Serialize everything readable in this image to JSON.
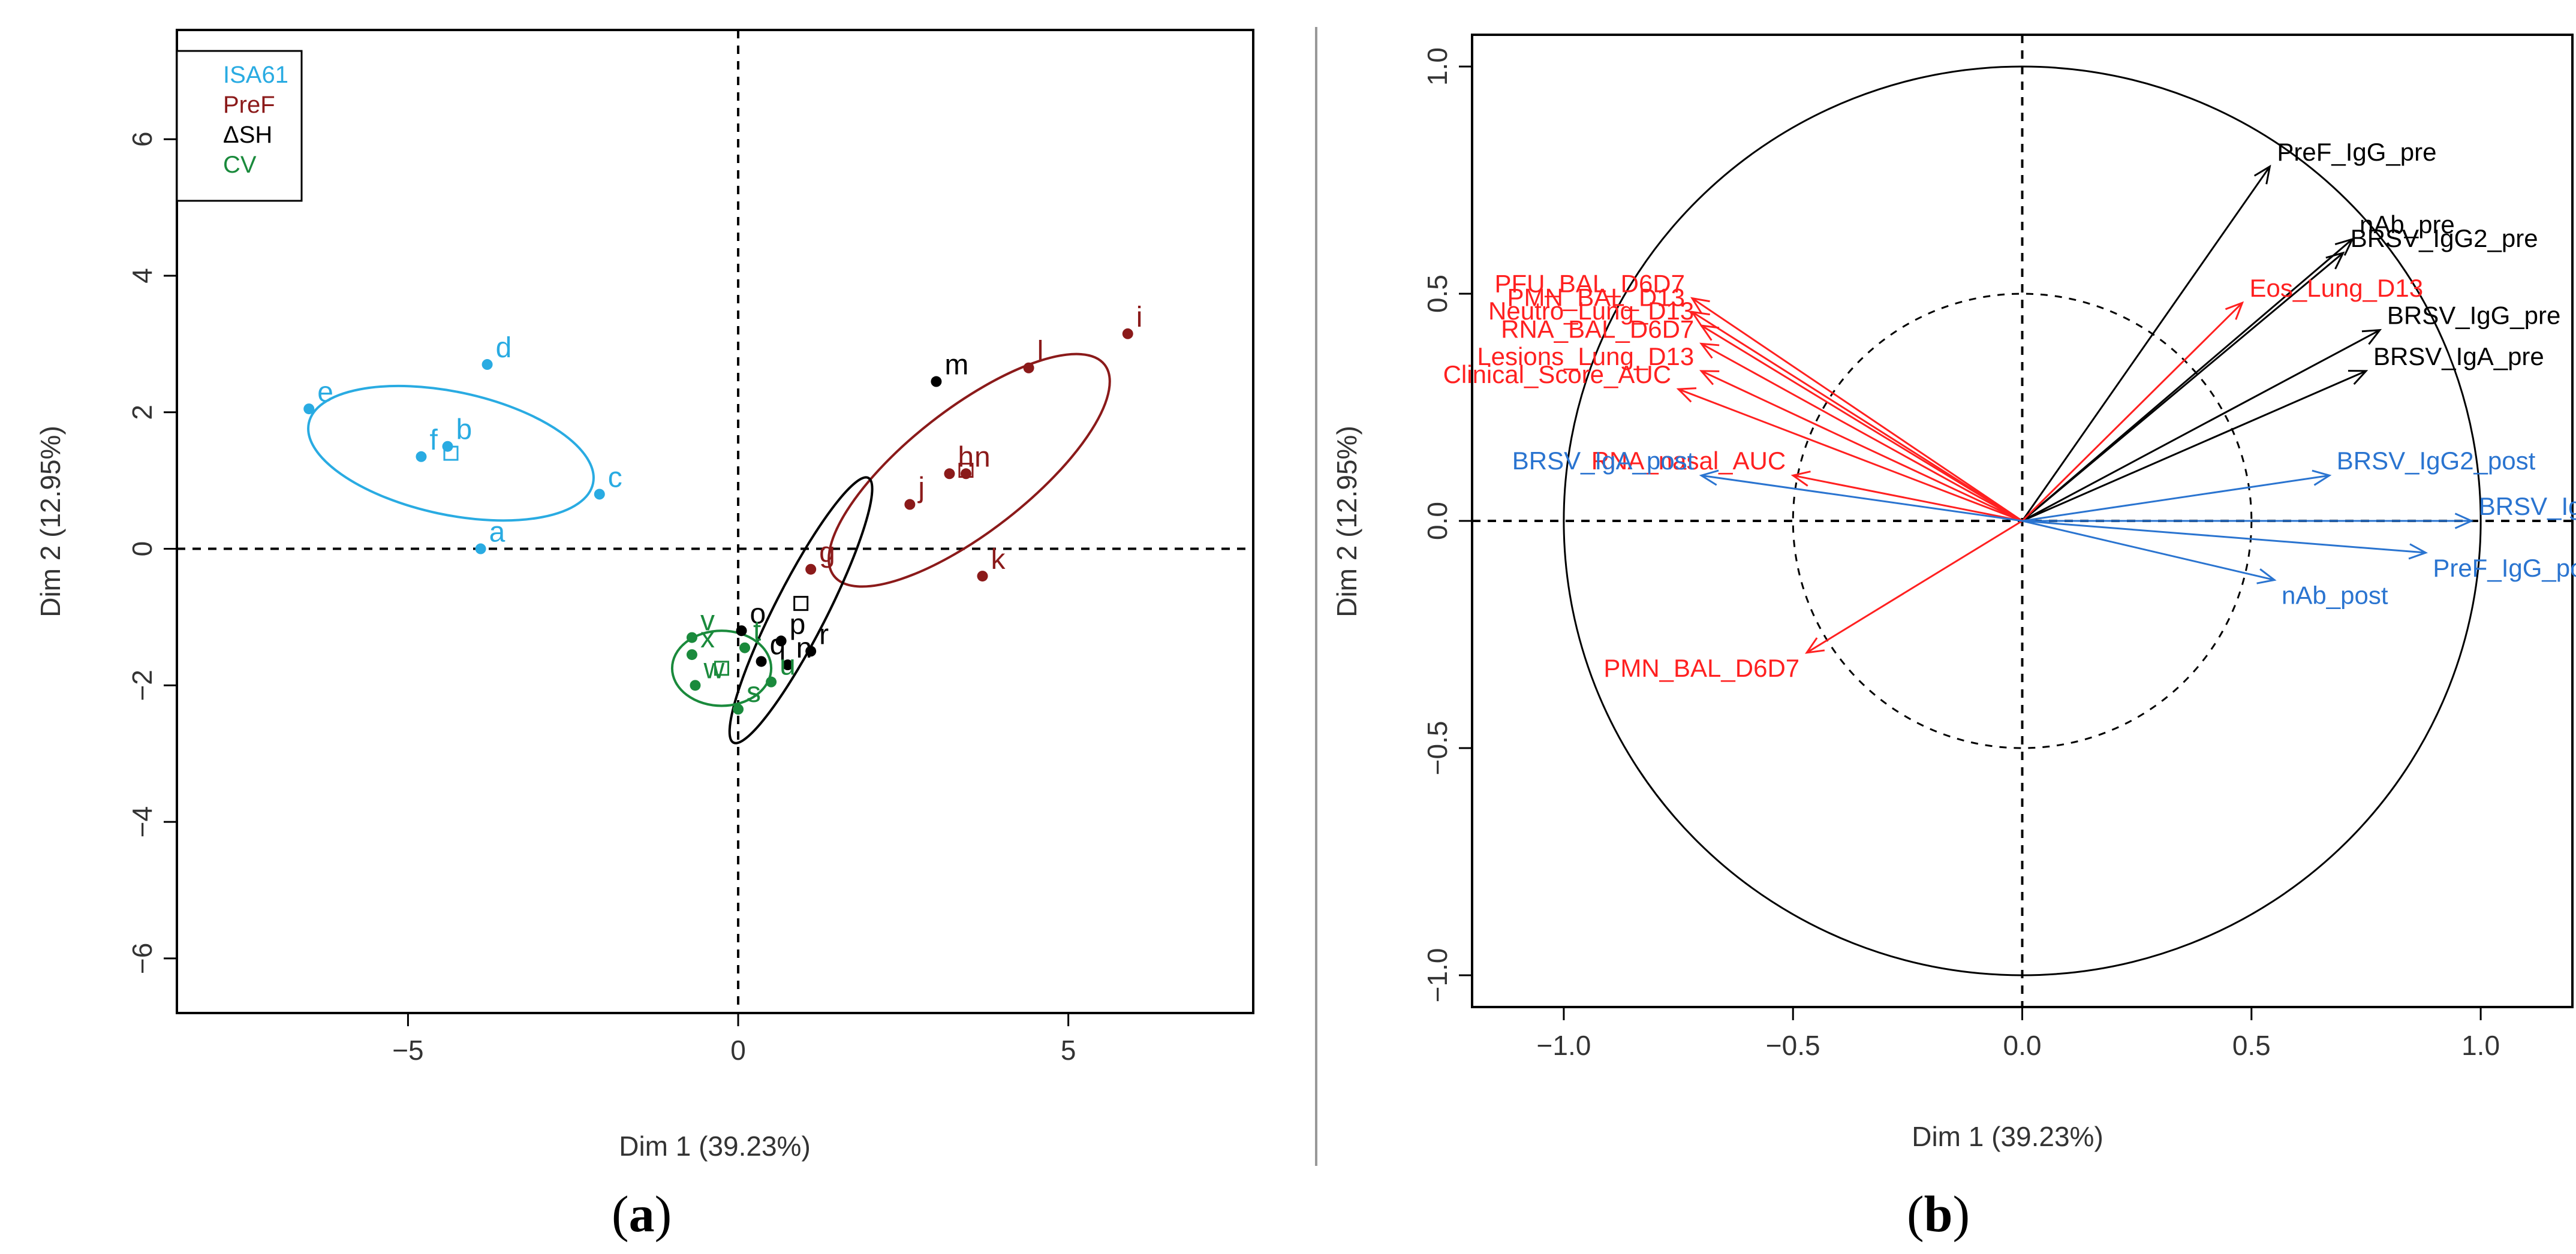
{
  "chart_data": [
    {
      "panel": "a",
      "type": "scatter",
      "xlabel": "Dim 1 (39.23%)",
      "ylabel": "Dim 2 (12.95%)",
      "xlim": [
        -8.5,
        7.8
      ],
      "ylim": [
        -6.8,
        7.6
      ],
      "xticks": [
        -5,
        0,
        5
      ],
      "yticks": [
        -6,
        -4,
        -2,
        0,
        2,
        4,
        6
      ],
      "legend": {
        "position": "top-left",
        "entries": [
          {
            "label": "ISA61",
            "color": "#29abe2"
          },
          {
            "label": "PreF",
            "color": "#8b1a1a"
          },
          {
            "label": "ΔSH",
            "color": "#000000"
          },
          {
            "label": "CV",
            "color": "#1a8a3c"
          }
        ]
      },
      "groups": [
        {
          "name": "ISA61",
          "color": "#29abe2",
          "points": [
            {
              "label": "a",
              "x": -3.9,
              "y": 0.0
            },
            {
              "label": "b",
              "x": -4.4,
              "y": 1.5
            },
            {
              "label": "c",
              "x": -2.1,
              "y": 0.8
            },
            {
              "label": "d",
              "x": -3.8,
              "y": 2.7
            },
            {
              "label": "e",
              "x": -6.5,
              "y": 2.05
            },
            {
              "label": "f",
              "x": -4.8,
              "y": 1.35
            }
          ],
          "centroid": {
            "x": -4.35,
            "y": 1.4
          },
          "ellipse": {
            "cx": -4.35,
            "cy": 1.4,
            "rx": 2.2,
            "ry": 0.9,
            "angle": -12
          }
        },
        {
          "name": "PreF",
          "color": "#8b1a1a",
          "points": [
            {
              "label": "g",
              "x": 1.1,
              "y": -0.3
            },
            {
              "label": "h",
              "x": 3.2,
              "y": 1.1
            },
            {
              "label": "i",
              "x": 5.9,
              "y": 3.15
            },
            {
              "label": "j",
              "x": 2.6,
              "y": 0.65
            },
            {
              "label": "k",
              "x": 3.7,
              "y": -0.4
            },
            {
              "label": "l",
              "x": 4.4,
              "y": 2.65
            },
            {
              "label": "n",
              "x": 3.45,
              "y": 1.1
            }
          ],
          "centroid": {
            "x": 3.45,
            "y": 1.15
          },
          "ellipse": {
            "cx": 3.5,
            "cy": 1.15,
            "rx": 2.6,
            "ry": 0.9,
            "angle": 38
          }
        },
        {
          "name": "ΔSH",
          "color": "#000000",
          "points": [
            {
              "label": "m",
              "x": 3.0,
              "y": 2.45
            },
            {
              "label": "n",
              "x": 0.75,
              "y": -1.7
            },
            {
              "label": "o",
              "x": 0.05,
              "y": -1.2
            },
            {
              "label": "p",
              "x": 0.65,
              "y": -1.35
            },
            {
              "label": "q",
              "x": 0.35,
              "y": -1.65
            },
            {
              "label": "r",
              "x": 1.1,
              "y": -1.5
            }
          ],
          "centroid": {
            "x": 0.95,
            "y": -0.8
          },
          "ellipse": {
            "cx": 0.95,
            "cy": -0.9,
            "rx": 2.25,
            "ry": 0.38,
            "angle": 63
          }
        },
        {
          "name": "CV",
          "color": "#1a8a3c",
          "points": [
            {
              "label": "s",
              "x": 0.0,
              "y": -2.35
            },
            {
              "label": "t",
              "x": 0.1,
              "y": -1.45
            },
            {
              "label": "u",
              "x": 0.5,
              "y": -1.95
            },
            {
              "label": "v",
              "x": -0.7,
              "y": -1.3
            },
            {
              "label": "w",
              "x": -0.65,
              "y": -2.0
            },
            {
              "label": "x",
              "x": -0.7,
              "y": -1.55
            }
          ],
          "centroid": {
            "x": -0.25,
            "y": -1.75
          },
          "ellipse": {
            "cx": -0.25,
            "cy": -1.75,
            "rx": 0.75,
            "ry": 0.55,
            "angle": 0
          }
        }
      ]
    },
    {
      "panel": "b",
      "type": "scatter",
      "subtype": "correlation-circle",
      "xlabel": "Dim 1 (39.23%)",
      "ylabel": "Dim 2 (12.95%)",
      "xlim": [
        -1.2,
        1.2
      ],
      "ylim": [
        -1.07,
        1.07
      ],
      "xticks": [
        -1.0,
        -0.5,
        0.0,
        0.5,
        1.0
      ],
      "yticks": [
        -1.0,
        -0.5,
        0.0,
        0.5,
        1.0
      ],
      "xtick_labels": [
        "−1.0",
        "−0.5",
        "0.0",
        "0.5",
        "1.0"
      ],
      "ytick_labels": [
        "−1.0",
        "−0.5",
        "0.0",
        "0.5",
        "1.0"
      ],
      "circles": [
        1.0,
        0.5
      ],
      "vectors": [
        {
          "label": "PreF_IgG_pre",
          "x": 0.54,
          "y": 0.78,
          "color": "#000000"
        },
        {
          "label": "nAb_pre",
          "x": 0.72,
          "y": 0.62,
          "color": "#000000"
        },
        {
          "label": "BRSV_IgG2_pre",
          "x": 0.7,
          "y": 0.59,
          "color": "#000000"
        },
        {
          "label": "BRSV_IgG_pre",
          "x": 0.78,
          "y": 0.42,
          "color": "#000000"
        },
        {
          "label": "BRSV_IgA_pre",
          "x": 0.75,
          "y": 0.33,
          "color": "#000000"
        },
        {
          "label": "Eos_Lung_D13",
          "x": 0.48,
          "y": 0.48,
          "color": "#ff2020"
        },
        {
          "label": "PFU_BAL_D6D7",
          "x": -0.72,
          "y": 0.49,
          "color": "#ff2020"
        },
        {
          "label": "PMN_BAL_D13",
          "x": -0.72,
          "y": 0.46,
          "color": "#ff2020"
        },
        {
          "label": "Neutro_Lung_D13",
          "x": -0.7,
          "y": 0.43,
          "color": "#ff2020"
        },
        {
          "label": "RNA_BAL_D6D7",
          "x": -0.7,
          "y": 0.39,
          "color": "#ff2020"
        },
        {
          "label": "Lesions_Lung_D13",
          "x": -0.7,
          "y": 0.33,
          "color": "#ff2020"
        },
        {
          "label": "Clinical_Score_AUC",
          "x": -0.75,
          "y": 0.29,
          "color": "#ff2020"
        },
        {
          "label": "RNA_nasal_AUC",
          "x": -0.5,
          "y": 0.1,
          "color": "#ff2020"
        },
        {
          "label": "PMN_BAL_D6D7",
          "x": -0.47,
          "y": -0.29,
          "color": "#ff2020"
        },
        {
          "label": "BRSV_IgA_post",
          "x": -0.7,
          "y": 0.1,
          "color": "#2a74d0"
        },
        {
          "label": "BRSV_IgG2_post",
          "x": 0.67,
          "y": 0.1,
          "color": "#2a74d0"
        },
        {
          "label": "BRSV_IgG_post",
          "x": 0.98,
          "y": 0.0,
          "color": "#2a74d0"
        },
        {
          "label": "PreF_IgG_post",
          "x": 0.88,
          "y": -0.07,
          "color": "#2a74d0"
        },
        {
          "label": "nAb_post",
          "x": 0.55,
          "y": -0.13,
          "color": "#2a74d0"
        }
      ]
    }
  ],
  "captions": {
    "a": {
      "open": "(",
      "letter": "a",
      "close": ")"
    },
    "b": {
      "open": "(",
      "letter": "b",
      "close": ")"
    }
  }
}
